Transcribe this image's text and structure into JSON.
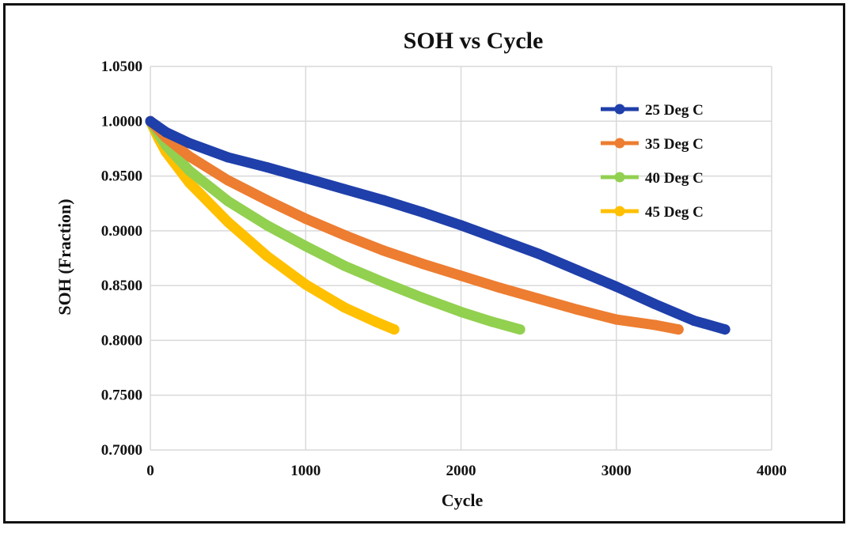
{
  "chart_data": {
    "type": "line",
    "title": "SOH vs Cycle",
    "xlabel": "Cycle",
    "ylabel": "SOH (Fraction)",
    "xlim": [
      0,
      4000
    ],
    "ylim": [
      0.7,
      1.05
    ],
    "x_ticks": [
      {
        "value": 0,
        "label": "0"
      },
      {
        "value": 1000,
        "label": "1000"
      },
      {
        "value": 2000,
        "label": "2000"
      },
      {
        "value": 3000,
        "label": "3000"
      },
      {
        "value": 4000,
        "label": "4000"
      }
    ],
    "y_ticks": [
      {
        "value": 0.7,
        "label": "0.7000"
      },
      {
        "value": 0.75,
        "label": "0.7500"
      },
      {
        "value": 0.8,
        "label": "0.8000"
      },
      {
        "value": 0.85,
        "label": "0.8500"
      },
      {
        "value": 0.9,
        "label": "0.9000"
      },
      {
        "value": 0.95,
        "label": "0.9500"
      },
      {
        "value": 1.0,
        "label": "1.0000"
      },
      {
        "value": 1.05,
        "label": "1.0500"
      }
    ],
    "grid": true,
    "legend_position": "top-right",
    "series": [
      {
        "name": "25 Deg C",
        "color": "#1f3faa",
        "x": [
          0,
          100,
          250,
          500,
          750,
          1000,
          1250,
          1500,
          1750,
          2000,
          2250,
          2500,
          2750,
          3000,
          3250,
          3500,
          3700
        ],
        "y": [
          1.0,
          0.99,
          0.98,
          0.967,
          0.958,
          0.948,
          0.938,
          0.928,
          0.917,
          0.905,
          0.892,
          0.879,
          0.864,
          0.849,
          0.833,
          0.818,
          0.81
        ]
      },
      {
        "name": "35 Deg C",
        "color": "#ed7d31",
        "x": [
          0,
          100,
          250,
          500,
          750,
          1000,
          1250,
          1500,
          1750,
          2000,
          2250,
          2500,
          2750,
          3000,
          3250,
          3400
        ],
        "y": [
          1.0,
          0.985,
          0.968,
          0.946,
          0.928,
          0.911,
          0.896,
          0.882,
          0.87,
          0.859,
          0.848,
          0.838,
          0.828,
          0.819,
          0.814,
          0.81
        ]
      },
      {
        "name": "40 Deg C",
        "color": "#92d050",
        "x": [
          0,
          100,
          250,
          500,
          750,
          1000,
          1250,
          1500,
          1750,
          2000,
          2200,
          2380
        ],
        "y": [
          1.0,
          0.978,
          0.955,
          0.927,
          0.905,
          0.886,
          0.868,
          0.853,
          0.839,
          0.826,
          0.817,
          0.81
        ]
      },
      {
        "name": "45 Deg C",
        "color": "#ffc000",
        "x": [
          0,
          50,
          100,
          250,
          500,
          750,
          1000,
          1250,
          1450,
          1570
        ],
        "y": [
          1.0,
          0.985,
          0.972,
          0.944,
          0.908,
          0.877,
          0.851,
          0.83,
          0.817,
          0.81
        ]
      }
    ]
  }
}
